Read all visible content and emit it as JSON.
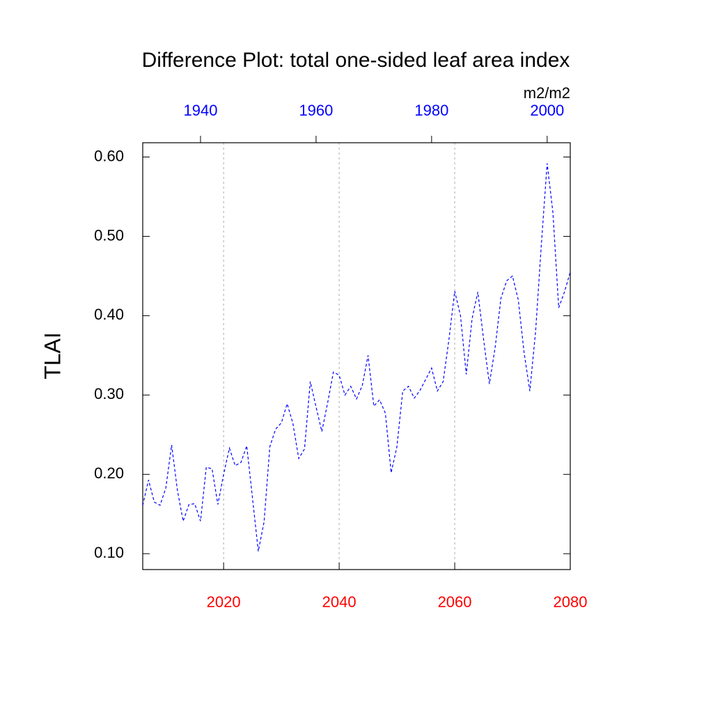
{
  "chart_data": {
    "type": "line",
    "title": "Difference Plot: total one-sided leaf area index",
    "units": "m2/m2",
    "y_label": "TLAI",
    "x": [
      2006,
      2007,
      2008,
      2009,
      2010,
      2011,
      2012,
      2013,
      2014,
      2015,
      2016,
      2017,
      2018,
      2019,
      2020,
      2021,
      2022,
      2023,
      2024,
      2025,
      2026,
      2027,
      2028,
      2029,
      2030,
      2031,
      2032,
      2033,
      2034,
      2035,
      2036,
      2037,
      2038,
      2039,
      2040,
      2041,
      2042,
      2043,
      2044,
      2045,
      2046,
      2047,
      2048,
      2049,
      2050,
      2051,
      2052,
      2053,
      2054,
      2055,
      2056,
      2057,
      2058,
      2059,
      2060,
      2061,
      2062,
      2063,
      2064,
      2065,
      2066,
      2067,
      2068,
      2069,
      2070,
      2071,
      2072,
      2073,
      2074,
      2075,
      2076,
      2077,
      2078,
      2079,
      2080
    ],
    "series": [
      {
        "color": "#0000ff",
        "values": [
          0.161,
          0.193,
          0.165,
          0.161,
          0.183,
          0.237,
          0.18,
          0.141,
          0.162,
          0.163,
          0.141,
          0.209,
          0.207,
          0.162,
          0.2,
          0.233,
          0.211,
          0.215,
          0.236,
          0.17,
          0.103,
          0.14,
          0.235,
          0.257,
          0.265,
          0.289,
          0.264,
          0.22,
          0.232,
          0.317,
          0.285,
          0.254,
          0.29,
          0.329,
          0.325,
          0.3,
          0.311,
          0.295,
          0.312,
          0.35,
          0.286,
          0.294,
          0.277,
          0.202,
          0.235,
          0.305,
          0.311,
          0.296,
          0.306,
          0.32,
          0.334,
          0.305,
          0.317,
          0.37,
          0.431,
          0.4,
          0.326,
          0.396,
          0.43,
          0.37,
          0.314,
          0.36,
          0.422,
          0.444,
          0.45,
          0.42,
          0.354,
          0.305,
          0.38,
          0.49,
          0.592,
          0.53,
          0.41,
          0.43,
          0.455
        ]
      }
    ],
    "xlim": [
      2006,
      2080
    ],
    "xticks": [
      2020,
      2040,
      2060,
      2080
    ],
    "xtick_color": "#ff0000",
    "x2lim": [
      1930,
      2004
    ],
    "x2ticks": [
      1940,
      1960,
      1980,
      2000
    ],
    "x2tick_color": "#0000ff",
    "ylim": [
      0.08,
      0.618
    ],
    "yticks": [
      {
        "value": 0.1,
        "label": "0.10"
      },
      {
        "value": 0.2,
        "label": "0.20"
      },
      {
        "value": 0.3,
        "label": "0.30"
      },
      {
        "value": 0.4,
        "label": "0.40"
      },
      {
        "value": 0.5,
        "label": "0.50"
      },
      {
        "value": 0.6,
        "label": "0.60"
      }
    ],
    "grid": true
  }
}
